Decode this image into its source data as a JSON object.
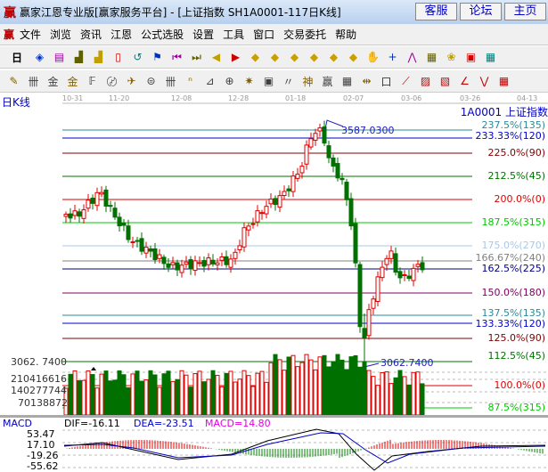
{
  "window": {
    "logo": "赢",
    "title": "赢家江恩专业版[赢家服务平台] - [上证指数  SH1A0001-117日K线]",
    "buttons": [
      "客服",
      "论坛",
      "主页"
    ]
  },
  "menu": {
    "logo": "赢",
    "items": [
      "文件",
      "浏览",
      "资讯",
      "江恩",
      "公式选股",
      "设置",
      "工具",
      "窗口",
      "交易委托",
      "帮助"
    ]
  },
  "toolbar1": {
    "period": "日",
    "icons": [
      "stock-icon",
      "notes-icon",
      "chart3-icon",
      "chart9-icon",
      "candle-icon",
      "reset-icon",
      "flag-icon",
      "first-icon",
      "last-icon",
      "left-icon",
      "right-icon",
      "arrow-left-diamond-icon",
      "arrow-right-diamond-icon",
      "expand-h-icon",
      "collapse-icon",
      "expand-all-icon",
      "expand-v-icon",
      "hand-icon",
      "crosshair-icon",
      "zigzag-icon",
      "section-icon",
      "tree-icon",
      "calendar-icon",
      "calculator-icon"
    ]
  },
  "toolbar2": {
    "icons": [
      "pen-icon",
      "grid-icon",
      "gold-icon",
      "gold2-icon",
      "fib-icon",
      "spiral-icon",
      "rocket-icon",
      "circle-icon",
      "lines-icon",
      "n2-icon",
      "fan-icon",
      "target-icon",
      "star-icon",
      "square-icon",
      "parallel-icon",
      "god-icon",
      "win-icon",
      "ruler-icon",
      "span-icon",
      "box-icon",
      "fan-red-icon",
      "square-red-icon",
      "box-red-icon",
      "angle-icon",
      "wave-icon",
      "grid-red-icon"
    ]
  },
  "dates": [
    "10-31",
    "11-20",
    "12-08",
    "12-28",
    "01-18",
    "02-07",
    "03-06",
    "03-26",
    "04-13"
  ],
  "chart": {
    "period_label": "日K线",
    "symbol": "1A0001  上证指数",
    "high_label": "3587.0300",
    "low_label": "3062.7400",
    "low_axis": "3062. 7400",
    "levels": [
      {
        "label": "237.5%(135)",
        "color": "#2a8a9a"
      },
      {
        "label": "233.33%(120)",
        "color": "#0000c8"
      },
      {
        "label": "225.0%(90)",
        "color": "#800000"
      },
      {
        "label": "212.5%(45)",
        "color": "#007000"
      },
      {
        "label": "200.0%(0)",
        "color": "#e00000"
      },
      {
        "label": "187.5%(315)",
        "color": "#00c800"
      },
      {
        "label": "175.0%(270)",
        "color": "#a8c8e8"
      },
      {
        "label": "166.67%(240)",
        "color": "#808080"
      },
      {
        "label": "162.5%(225)",
        "color": "#000080"
      },
      {
        "label": "150.0%(180)",
        "color": "#800060"
      },
      {
        "label": "137.5%(135)",
        "color": "#2a8a9a"
      },
      {
        "label": "133.33%(120)",
        "color": "#0000c8"
      },
      {
        "label": "125.0%(90)",
        "color": "#800000"
      },
      {
        "label": "112.5%(45)",
        "color": "#007000"
      },
      {
        "label": "100.0%(0)",
        "color": "#e00000"
      },
      {
        "label": "87.5%(315)",
        "color": "#00c800"
      }
    ],
    "volume_axis": [
      "210416616",
      "140277744",
      "70138872"
    ],
    "up_color": "#e00000",
    "down_color": "#007000"
  },
  "macd": {
    "name": "MACD",
    "dif": "DIF=-16.11",
    "dea": "DEA=-23.51",
    "macd": "MACD=14.80",
    "axis": [
      "53.47",
      "17.10",
      "-19.26",
      "-55.62"
    ]
  }
}
